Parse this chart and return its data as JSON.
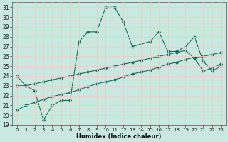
{
  "xlabel": "Humidex (Indice chaleur)",
  "background_color": "#c8e8e0",
  "grid_color": "#e8d0c8",
  "line_color": "#1a6b5a",
  "xlim": [
    -0.5,
    23.5
  ],
  "ylim": [
    19,
    31.5
  ],
  "yticks": [
    19,
    20,
    21,
    22,
    23,
    24,
    25,
    26,
    27,
    28,
    29,
    30,
    31
  ],
  "xticks": [
    0,
    1,
    2,
    3,
    4,
    5,
    6,
    7,
    8,
    9,
    10,
    11,
    12,
    13,
    14,
    15,
    16,
    17,
    18,
    19,
    20,
    21,
    22,
    23
  ],
  "line1_x": [
    0,
    1,
    2,
    3,
    4,
    5,
    6,
    7,
    8,
    9,
    10,
    11,
    12,
    13,
    15,
    16,
    17,
    18,
    19,
    20,
    21,
    22,
    23
  ],
  "line1_y": [
    24,
    23,
    22.5,
    19.5,
    21,
    21.5,
    21.5,
    27.5,
    28.5,
    28.5,
    31,
    31,
    29.5,
    27.0,
    27.5,
    28.5,
    26.5,
    26.5,
    27,
    28,
    25.5,
    24.5,
    25
  ],
  "line2_x": [
    0,
    1,
    2,
    3,
    4,
    5,
    6,
    7,
    8,
    9,
    10,
    11,
    12,
    13,
    14,
    15,
    16,
    17,
    18,
    19,
    20,
    21,
    22,
    23
  ],
  "line2_y": [
    23,
    23,
    23.2,
    23.4,
    23.6,
    23.8,
    24.0,
    24.2,
    24.4,
    24.6,
    24.8,
    25.0,
    25.2,
    25.4,
    25.6,
    25.8,
    26.0,
    26.2,
    26.4,
    26.6,
    25.8,
    24.5,
    24.8,
    25.2
  ],
  "line3_x": [
    0,
    1,
    2,
    3,
    4,
    5,
    6,
    7,
    8,
    9,
    10,
    11,
    12,
    13,
    14,
    15,
    16,
    17,
    18,
    19,
    20,
    21,
    22,
    23
  ],
  "line3_y": [
    20.5,
    21.0,
    21.3,
    21.6,
    21.9,
    22.1,
    22.3,
    22.6,
    22.9,
    23.2,
    23.4,
    23.6,
    23.9,
    24.2,
    24.4,
    24.6,
    24.9,
    25.2,
    25.4,
    25.7,
    25.9,
    26.0,
    26.2,
    26.4
  ]
}
